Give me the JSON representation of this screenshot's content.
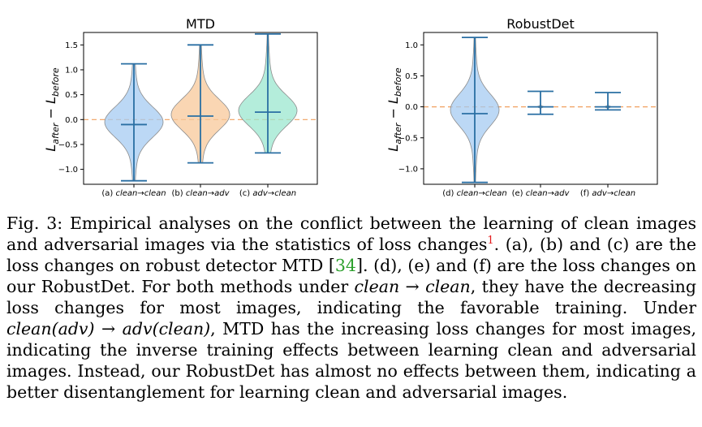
{
  "chart_data": [
    {
      "type": "violin",
      "title": "MTD",
      "ylabel": "L_after − L_before",
      "ylabel_main": "L",
      "ylabel_sub1": "after",
      "ylabel_minus": " − L",
      "ylabel_sub2": "before",
      "ylim": [
        -1.3,
        1.75
      ],
      "yticks": [
        -1.0,
        -0.5,
        0.0,
        0.5,
        1.0,
        1.5
      ],
      "ytick_labels": [
        "−1.0",
        "−0.5",
        "0.0",
        "0.5",
        "1.0",
        "1.5"
      ],
      "reference_line": 0.0,
      "categories": [
        "(a) clean→clean",
        "(b) clean→adv",
        "(c) adv→clean"
      ],
      "violins": [
        {
          "label": "(a) clean→clean",
          "min": -1.23,
          "max": 1.12,
          "mean": -0.1,
          "color": "#a6cbf2",
          "peak": -0.05,
          "spread": 0.3
        },
        {
          "label": "(b) clean→adv",
          "min": -0.87,
          "max": 1.5,
          "mean": 0.07,
          "color": "#f8c89a",
          "peak": 0.1,
          "spread": 0.3
        },
        {
          "label": "(c) adv→clean",
          "min": -0.67,
          "max": 1.72,
          "mean": 0.15,
          "color": "#9be7cf",
          "peak": 0.18,
          "spread": 0.3
        }
      ]
    },
    {
      "type": "violin",
      "title": "RobustDet",
      "ylabel": "L_after − L_before",
      "ylabel_main": "L",
      "ylabel_sub1": "after",
      "ylabel_minus": " − L",
      "ylabel_sub2": "before",
      "ylim": [
        -1.25,
        1.2
      ],
      "yticks": [
        -1.0,
        -0.5,
        0.0,
        0.5,
        1.0
      ],
      "ytick_labels": [
        "−1.0",
        "−0.5",
        "0.0",
        "0.5",
        "1.0"
      ],
      "reference_line": 0.0,
      "categories": [
        "(d) clean→clean",
        "(e) clean→adv",
        "(f) adv→clean"
      ],
      "violins": [
        {
          "label": "(d) clean→clean",
          "min": -1.22,
          "max": 1.12,
          "mean": -0.11,
          "color": "#a6cbf2",
          "peak": -0.05,
          "spread": 0.25
        },
        {
          "label": "(e) clean→adv",
          "min": -0.12,
          "max": 0.25,
          "mean": 0.0,
          "color": "#f8c89a",
          "peak": 0.0,
          "spread": 0.01
        },
        {
          "label": "(f) adv→clean",
          "min": -0.05,
          "max": 0.23,
          "mean": 0.0,
          "color": "#9be7cf",
          "peak": 0.0,
          "spread": 0.01
        }
      ]
    }
  ],
  "xtick_parts": [
    [
      "(a) ",
      "clean",
      "→",
      "clean"
    ],
    [
      "(b) ",
      "clean",
      "→",
      "adv"
    ],
    [
      "(c) ",
      "adv",
      "→",
      "clean"
    ],
    [
      "(d) ",
      "clean",
      "→",
      "clean"
    ],
    [
      "(e) ",
      "clean",
      "→",
      "adv"
    ],
    [
      "(f) ",
      "adv",
      "→",
      "clean"
    ]
  ],
  "caption": {
    "prefix": "Fig. 3: Empirical analyses on the conflict between the learning of clean images and adversarial images via the statistics of loss changes",
    "footnote_mark": "1",
    "part2": ". (a), (b) and (c) are the loss changes on robust detector MTD [",
    "ref": "34",
    "part3": "]. (d), (e) and (f) are the loss changes on our RobustDet. For both methods under ",
    "math1": "clean → clean",
    "part4": ", they have the decreasing loss changes for most images, indicating the favorable training. Under ",
    "math2": "clean(adv) → adv(clean)",
    "part5": ", MTD has the increasing loss changes for most images, indicating the inverse training effects between learning clean and adversarial images. Instead, our RobustDet has almost no effects between them, indicating a better disentanglement for learning clean and adversarial images."
  }
}
